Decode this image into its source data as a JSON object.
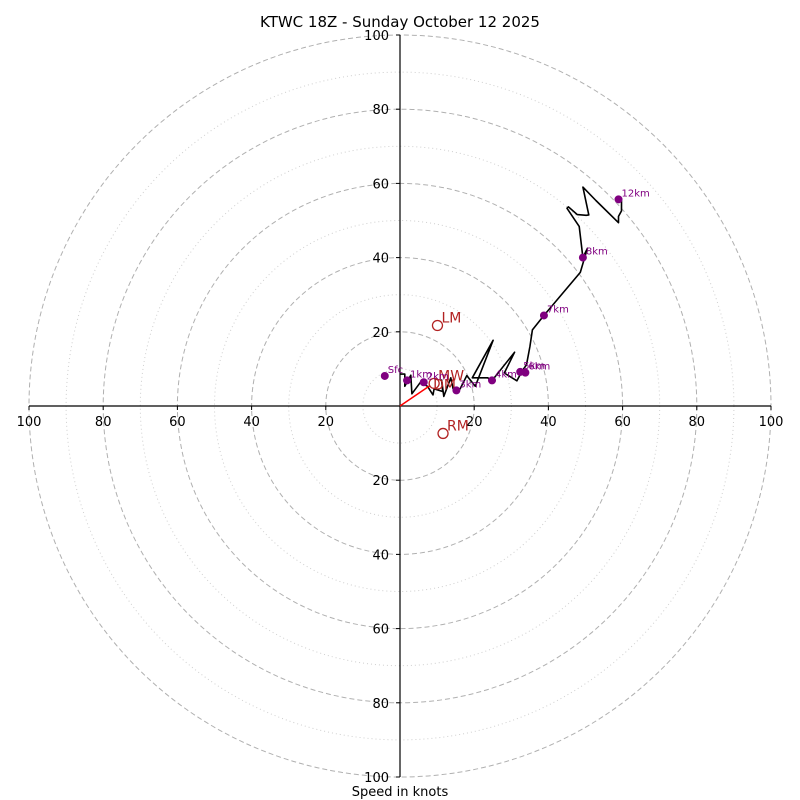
{
  "chart_data": {
    "type": "hodograph",
    "title": "KTWC 18Z - Sunday October 12 2025",
    "xlabel": "Speed in knots",
    "units": "knots",
    "range": [
      -100,
      100
    ],
    "ring_major": [
      20,
      40,
      60,
      80,
      100
    ],
    "ring_minor": [
      10,
      30,
      50,
      70,
      90
    ],
    "tick_values": [
      100,
      80,
      60,
      40,
      20
    ],
    "tick_labels": [
      "100",
      "80",
      "60",
      "40",
      "20"
    ],
    "hodograph_line": [
      [
        0,
        8.6
      ],
      [
        1.3,
        8.6
      ],
      [
        1.3,
        5.3
      ],
      [
        2.9,
        8.3
      ],
      [
        3.2,
        3.3
      ],
      [
        5.5,
        6.4
      ],
      [
        7.4,
        5.3
      ],
      [
        8.9,
        3.0
      ],
      [
        9.2,
        4.6
      ],
      [
        11.5,
        3.9
      ],
      [
        11.2,
        7.0
      ],
      [
        11.8,
        2.6
      ],
      [
        13.7,
        7.6
      ],
      [
        14.3,
        4.6
      ],
      [
        16.2,
        4.6
      ],
      [
        18.0,
        8.2
      ],
      [
        20.3,
        5.3
      ],
      [
        25.1,
        17.7
      ],
      [
        19.5,
        7.6
      ],
      [
        23.7,
        7.6
      ],
      [
        24.6,
        6.6
      ],
      [
        30.9,
        14.5
      ],
      [
        28.1,
        8.9
      ],
      [
        31.5,
        6.8
      ],
      [
        32.9,
        9.4
      ],
      [
        33.4,
        10.1
      ],
      [
        34.1,
        11.1
      ],
      [
        35.0,
        16.0
      ],
      [
        35.7,
        20.5
      ],
      [
        38.8,
        24.4
      ],
      [
        48.6,
        36.0
      ],
      [
        50.5,
        42.5
      ],
      [
        49.3,
        40.0
      ],
      [
        48.3,
        48.4
      ],
      [
        45.0,
        53.3
      ],
      [
        45.4,
        53.7
      ],
      [
        47.8,
        51.6
      ],
      [
        50.2,
        51.4
      ],
      [
        50.9,
        51.5
      ],
      [
        49.3,
        59.0
      ],
      [
        52.8,
        55.4
      ],
      [
        58.9,
        49.4
      ],
      [
        58.9,
        51.1
      ],
      [
        59.7,
        52.6
      ],
      [
        59.7,
        55.4
      ]
    ],
    "km_points": [
      {
        "label": "Sfc",
        "u": -4.1,
        "v": 8.1
      },
      {
        "label": "1km",
        "u": 1.9,
        "v": 6.9
      },
      {
        "label": "2km",
        "u": 6.4,
        "v": 6.4
      },
      {
        "label": "3km",
        "u": 15.2,
        "v": 4.2
      },
      {
        "label": "4km",
        "u": 24.8,
        "v": 6.9
      },
      {
        "label": "5km",
        "u": 32.4,
        "v": 9.2
      },
      {
        "label": "6km",
        "u": 33.8,
        "v": 9.0
      },
      {
        "label": "7km",
        "u": 38.8,
        "v": 24.4
      },
      {
        "label": "8km",
        "u": 49.3,
        "v": 40.0
      },
      {
        "label": "12km",
        "u": 58.9,
        "v": 55.7
      }
    ],
    "bulk_shear_vector": {
      "from": [
        0,
        0
      ],
      "to": [
        9.7,
        6.6
      ]
    },
    "storm_motions": [
      {
        "label": "LM",
        "u": 10.1,
        "v": 21.7
      },
      {
        "label": "MW",
        "u": 9.2,
        "v": 6.1
      },
      {
        "label": "RM",
        "u": 11.6,
        "v": -7.4
      }
    ],
    "dm_label": "DM",
    "colors": {
      "hodograph": "#000000",
      "km_points": "#800080",
      "storm_motion": "#b22222",
      "shear_vector": "#ff0000",
      "grid": "#b0b0b0",
      "axis": "#000000"
    }
  }
}
